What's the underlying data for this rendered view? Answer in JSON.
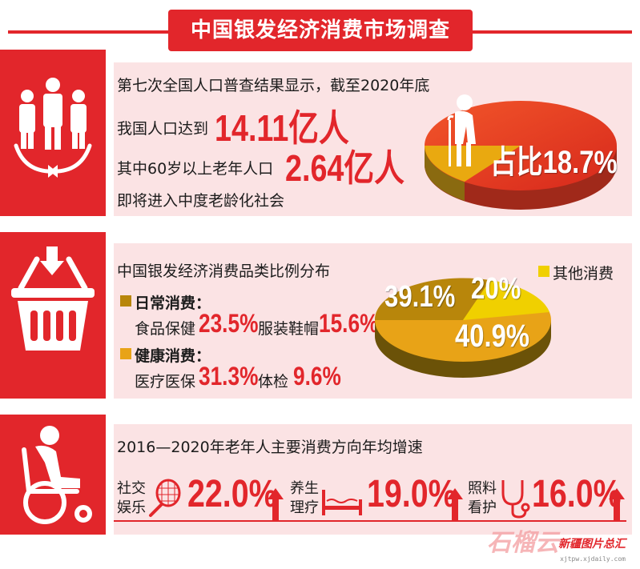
{
  "header": {
    "title": "中国银发经济消费市场调查"
  },
  "section1": {
    "line1": "第七次全国人口普查结果显示，截至2020年底",
    "line2_prefix": "我国人口达到",
    "line2_value": "14.11亿人",
    "line3_prefix": "其中60岁以上老年人口",
    "line3_value": "2.64亿人",
    "line4": "即将进入中度老龄化社会",
    "pie_label": "占比18.7%"
  },
  "section2": {
    "title": "中国银发经济消费品类比例分布",
    "daily_heading": "日常消费：",
    "food_label": "食品保健",
    "food_value": "23.5%",
    "clothing_label": "服装鞋帽",
    "clothing_value": "15.6%",
    "health_heading": "健康消费：",
    "medical_label": "医疗医保",
    "medical_value": "31.3%",
    "checkup_label": "体检",
    "checkup_value": "9.6%",
    "legend_other": "其他消费",
    "pie_daily": "39.1%",
    "pie_other": "20%",
    "pie_health": "40.9%"
  },
  "section3": {
    "title": "2016—2020年老年人主要消费方向年均增速",
    "item1_line1": "社交",
    "item1_line2": "娱乐",
    "item1_value": "22.0%",
    "item2_line1": "养生",
    "item2_line2": "理疗",
    "item2_value": "19.0%",
    "item3_line1": "照料",
    "item3_line2": "看护",
    "item3_value": "16.0%"
  },
  "watermark": {
    "brand": "新疆图片总汇",
    "url": "xjtpw.xjdaily.com"
  },
  "colors": {
    "red": "#e2262b",
    "pink_panel": "#fbe3e4",
    "gold_daily": "#b8860b",
    "orange_health": "#e8a317",
    "yellow_other": "#f0d000"
  }
}
